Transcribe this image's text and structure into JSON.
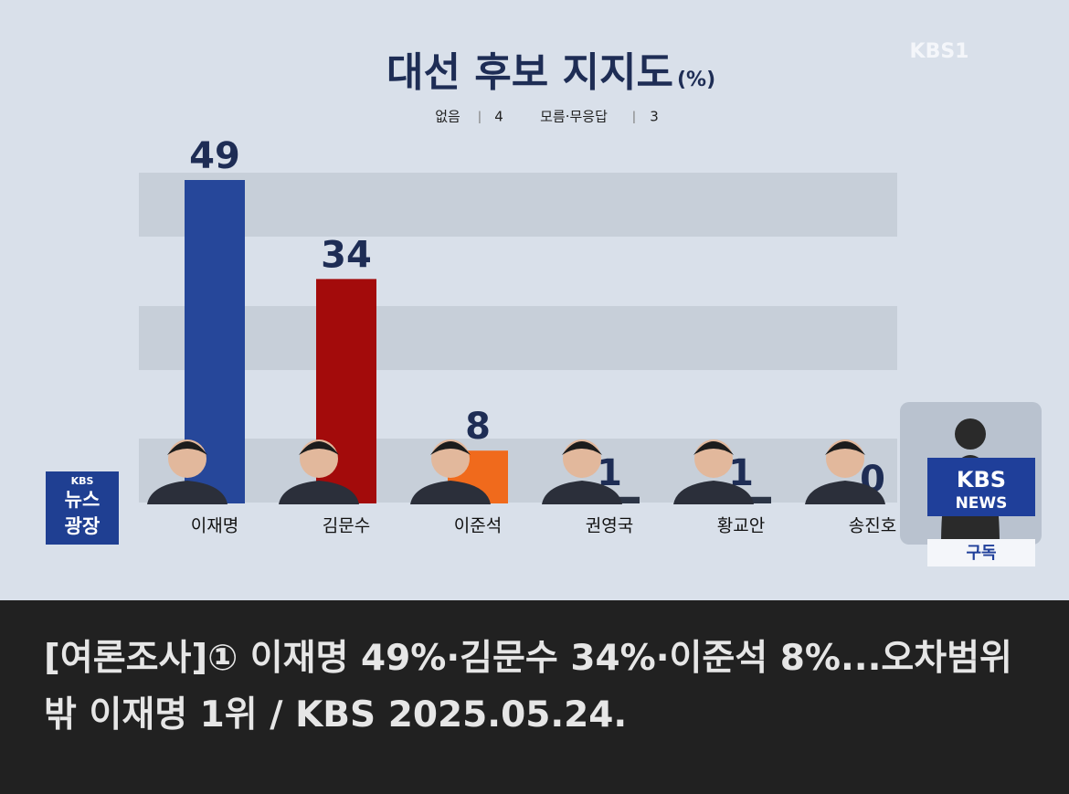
{
  "chart_data": {
    "type": "bar",
    "title": "대선 후보 지지도",
    "unit": "(%)",
    "notes": [
      {
        "label": "없음",
        "value": 4
      },
      {
        "label": "모름·무응답",
        "value": 3
      }
    ],
    "categories": [
      "이재명",
      "김문수",
      "이준석",
      "권영국",
      "황교안",
      "송진호"
    ],
    "values": [
      49,
      34,
      8,
      1,
      1,
      0
    ],
    "colors": [
      "#26479a",
      "#a30b0b",
      "#f06a1c",
      "#2c3546",
      "#2c3546",
      "#2c3546"
    ]
  },
  "logos": {
    "channel": "KBS1",
    "program": [
      "KBS",
      "뉴스",
      "광장"
    ],
    "news": [
      "KBS",
      "NEWS"
    ],
    "subscribe": "구독"
  },
  "caption": "[여론조사]① 이재명 49%·김문수 34%·이준석 8%...오차범위 밖 이재명 1위 / KBS 2025.05.24."
}
